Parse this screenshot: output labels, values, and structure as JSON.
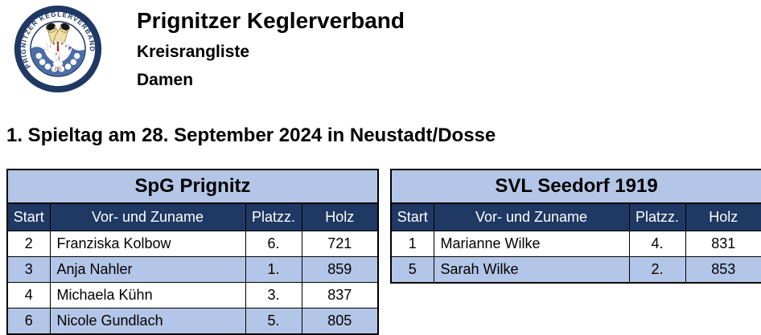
{
  "header": {
    "title": "Prignitzer Keglerverband",
    "subtitle1": "Kreisrangliste",
    "subtitle2": "Damen"
  },
  "logo": {
    "ring_text": "PRIGNITZER KEGLERVERBAND"
  },
  "heading": "1. Spieltag am 28. September 2024 in Neustadt/Dosse",
  "colors": {
    "navy": "#1F3864",
    "light_blue": "#B4C6E7",
    "border": "#000000",
    "logo_ring": "#1F3864",
    "logo_water": "#4A6DA7",
    "logo_ball_red": "#BF1A10",
    "logo_pin_cream": "#EFE0A8"
  },
  "tables": [
    {
      "title": "SpG Prignitz",
      "columns": [
        "Start",
        "Vor- und Zuname",
        "Platzz.",
        "Holz"
      ],
      "rows": [
        {
          "start": "2",
          "name": "Franziska Kolbow",
          "platz": "6.",
          "holz": "721"
        },
        {
          "start": "3",
          "name": "Anja Nahler",
          "platz": "1.",
          "holz": "859"
        },
        {
          "start": "4",
          "name": "Michaela Kühn",
          "platz": "3.",
          "holz": "837"
        },
        {
          "start": "6",
          "name": "Nicole Gundlach",
          "platz": "5.",
          "holz": "805"
        }
      ]
    },
    {
      "title": "SVL Seedorf 1919",
      "columns": [
        "Start",
        "Vor- und Zuname",
        "Platzz.",
        "Holz"
      ],
      "rows": [
        {
          "start": "1",
          "name": "Marianne Wilke",
          "platz": "4.",
          "holz": "831"
        },
        {
          "start": "5",
          "name": "Sarah Wilke",
          "platz": "2.",
          "holz": "853"
        }
      ]
    }
  ]
}
